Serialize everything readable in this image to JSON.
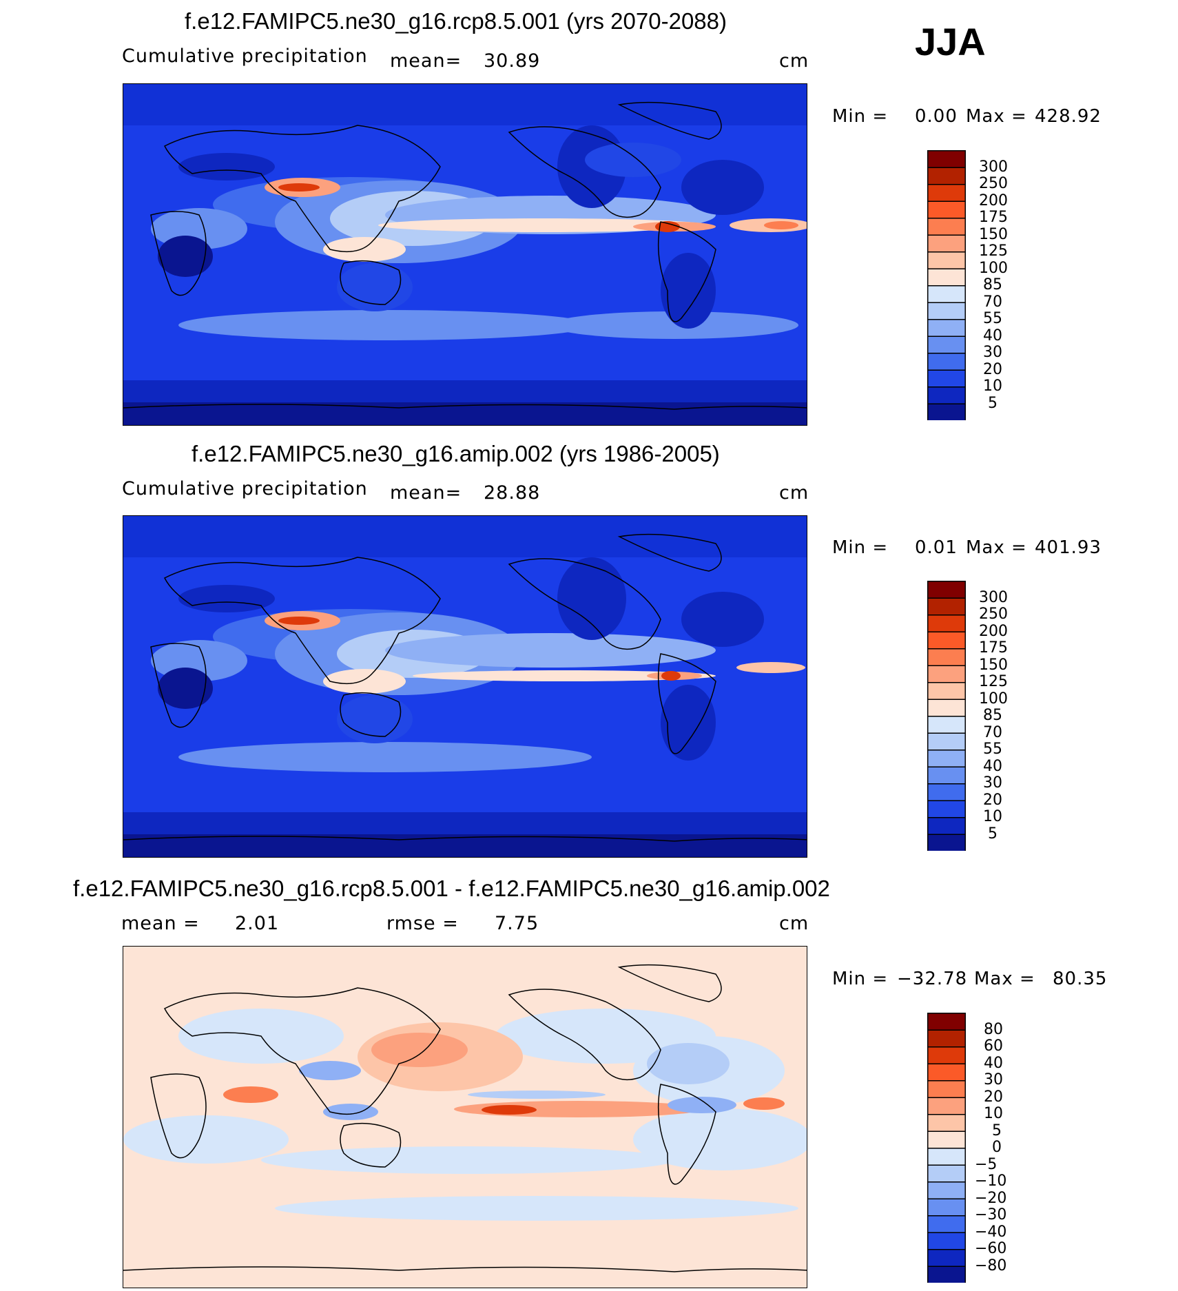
{
  "season": "JJA",
  "panels": [
    {
      "title": "f.e12.FAMIPC5.ne30_g16.rcp8.5.001 (yrs 2070-2088)",
      "variable": "Cumulative precipitation",
      "stat1_label": "mean=",
      "stat1_value": "30.89",
      "units": "cm",
      "min_label": "Min =",
      "min_value": "0.00",
      "max_label": "Max =",
      "max_value": "428.92",
      "colorbar": {
        "ticks": [
          "300",
          "250",
          "200",
          "175",
          "150",
          "125",
          "100",
          "85",
          "70",
          "55",
          "40",
          "30",
          "20",
          "10",
          "5"
        ],
        "colors": [
          "#800000",
          "#b22200",
          "#de3a0a",
          "#fb5a28",
          "#fc7e50",
          "#fca17e",
          "#fdc5a8",
          "#fde4d6",
          "#d6e6fa",
          "#b4cdf7",
          "#8fb0f5",
          "#6890f1",
          "#406cee",
          "#2147e6",
          "#0e27c0",
          "#0a1590"
        ]
      }
    },
    {
      "title": "f.e12.FAMIPC5.ne30_g16.amip.002 (yrs 1986-2005)",
      "variable": "Cumulative precipitation",
      "stat1_label": "mean=",
      "stat1_value": "28.88",
      "units": "cm",
      "min_label": "Min =",
      "min_value": "0.01",
      "max_label": "Max =",
      "max_value": "401.93",
      "colorbar": {
        "ticks": [
          "300",
          "250",
          "200",
          "175",
          "150",
          "125",
          "100",
          "85",
          "70",
          "55",
          "40",
          "30",
          "20",
          "10",
          "5"
        ],
        "colors": [
          "#800000",
          "#b22200",
          "#de3a0a",
          "#fb5a28",
          "#fc7e50",
          "#fca17e",
          "#fdc5a8",
          "#fde4d6",
          "#d6e6fa",
          "#b4cdf7",
          "#8fb0f5",
          "#6890f1",
          "#406cee",
          "#2147e6",
          "#0e27c0",
          "#0a1590"
        ]
      }
    },
    {
      "title": "f.e12.FAMIPC5.ne30_g16.rcp8.5.001 - f.e12.FAMIPC5.ne30_g16.amip.002",
      "stat1_label": "mean =",
      "stat1_value": "2.01",
      "stat2_label": "rmse =",
      "stat2_value": "7.75",
      "units": "cm",
      "min_label": "Min =",
      "min_value": "−32.78",
      "max_label": "Max =",
      "max_value": "80.35",
      "colorbar": {
        "ticks": [
          "80",
          "60",
          "40",
          "30",
          "20",
          "10",
          "5",
          "0",
          "−5",
          "−10",
          "−20",
          "−30",
          "−40",
          "−60",
          "−80"
        ],
        "colors": [
          "#800000",
          "#b22200",
          "#de3a0a",
          "#fb5a28",
          "#fc7e50",
          "#fca17e",
          "#fdc5a8",
          "#fde4d6",
          "#d6e6fa",
          "#b4cdf7",
          "#8fb0f5",
          "#6890f1",
          "#406cee",
          "#2147e6",
          "#0e27c0",
          "#0a1590"
        ]
      }
    }
  ]
}
